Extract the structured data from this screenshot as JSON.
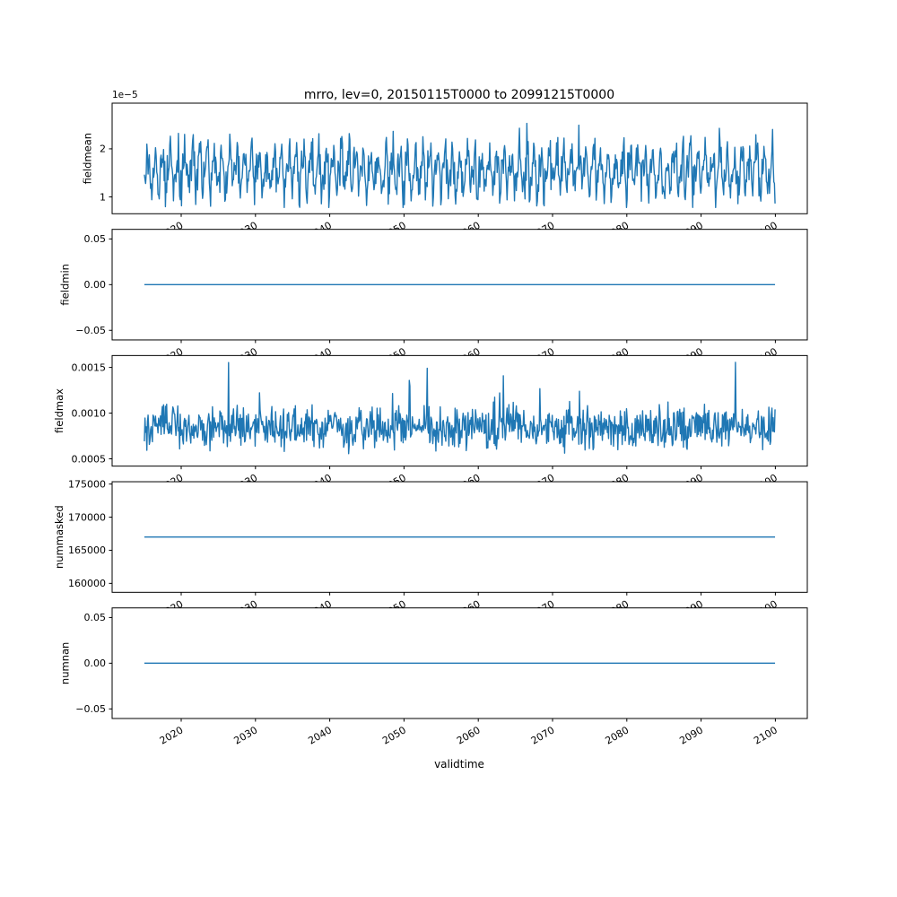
{
  "chart_data": {
    "type": "line",
    "title": "mrro, lev=0, 20150115T0000 to 20991215T0000",
    "xlabel": "validtime",
    "line_color": "#1f77b4",
    "grid": false,
    "legend": "none",
    "x": {
      "start": 2015.0417,
      "end": 2099.9583,
      "n": 1020
    },
    "xlim": [
      2010.7,
      2104.3
    ],
    "xticks": [
      2020,
      2030,
      2040,
      2050,
      2060,
      2070,
      2080,
      2090,
      2100
    ],
    "subplots": [
      {
        "ylabel": "fieldmean",
        "offset_text": "1e−5",
        "yticks": [
          1e-05,
          2e-05
        ],
        "ytick_labels": [
          "1",
          "2"
        ],
        "ylim": [
          6.5e-06,
          2.95e-05
        ],
        "series": {
          "kind": "seasonal-noise",
          "seed": 20150115,
          "base": 1.55e-05,
          "season_amp": 3.6e-06,
          "noise_sd": 2.2e-06,
          "min": 7.8e-06,
          "max": 2.85e-05
        }
      },
      {
        "ylabel": "fieldmin",
        "yticks": [
          -0.05,
          0.0,
          0.05
        ],
        "ytick_labels": [
          "−0.05",
          "0.00",
          "0.05"
        ],
        "ylim": [
          -0.0605,
          0.0605
        ],
        "series": {
          "kind": "constant",
          "value": 0.0
        }
      },
      {
        "ylabel": "fieldmax",
        "yticks": [
          0.0005,
          0.001,
          0.0015
        ],
        "ytick_labels": [
          "0.0005",
          "0.0010",
          "0.0015"
        ],
        "ylim": [
          0.00042,
          0.00163
        ],
        "series": {
          "kind": "noise",
          "seed": 20991215,
          "base": 0.00084,
          "noise_sd": 0.00011,
          "spike_prob": 0.02,
          "spike_amp": 0.0006,
          "min": 0.0005,
          "max": 0.0016
        }
      },
      {
        "ylabel": "nummasked",
        "yticks": [
          160000,
          165000,
          170000,
          175000
        ],
        "ytick_labels": [
          "160000",
          "165000",
          "170000",
          "175000"
        ],
        "ylim": [
          158650,
          175350
        ],
        "series": {
          "kind": "constant",
          "value": 167000
        }
      },
      {
        "ylabel": "numnan",
        "yticks": [
          -0.05,
          0.0,
          0.05
        ],
        "ytick_labels": [
          "−0.05",
          "0.00",
          "0.05"
        ],
        "ylim": [
          -0.0605,
          0.0605
        ],
        "series": {
          "kind": "constant",
          "value": 0.0
        }
      }
    ]
  }
}
